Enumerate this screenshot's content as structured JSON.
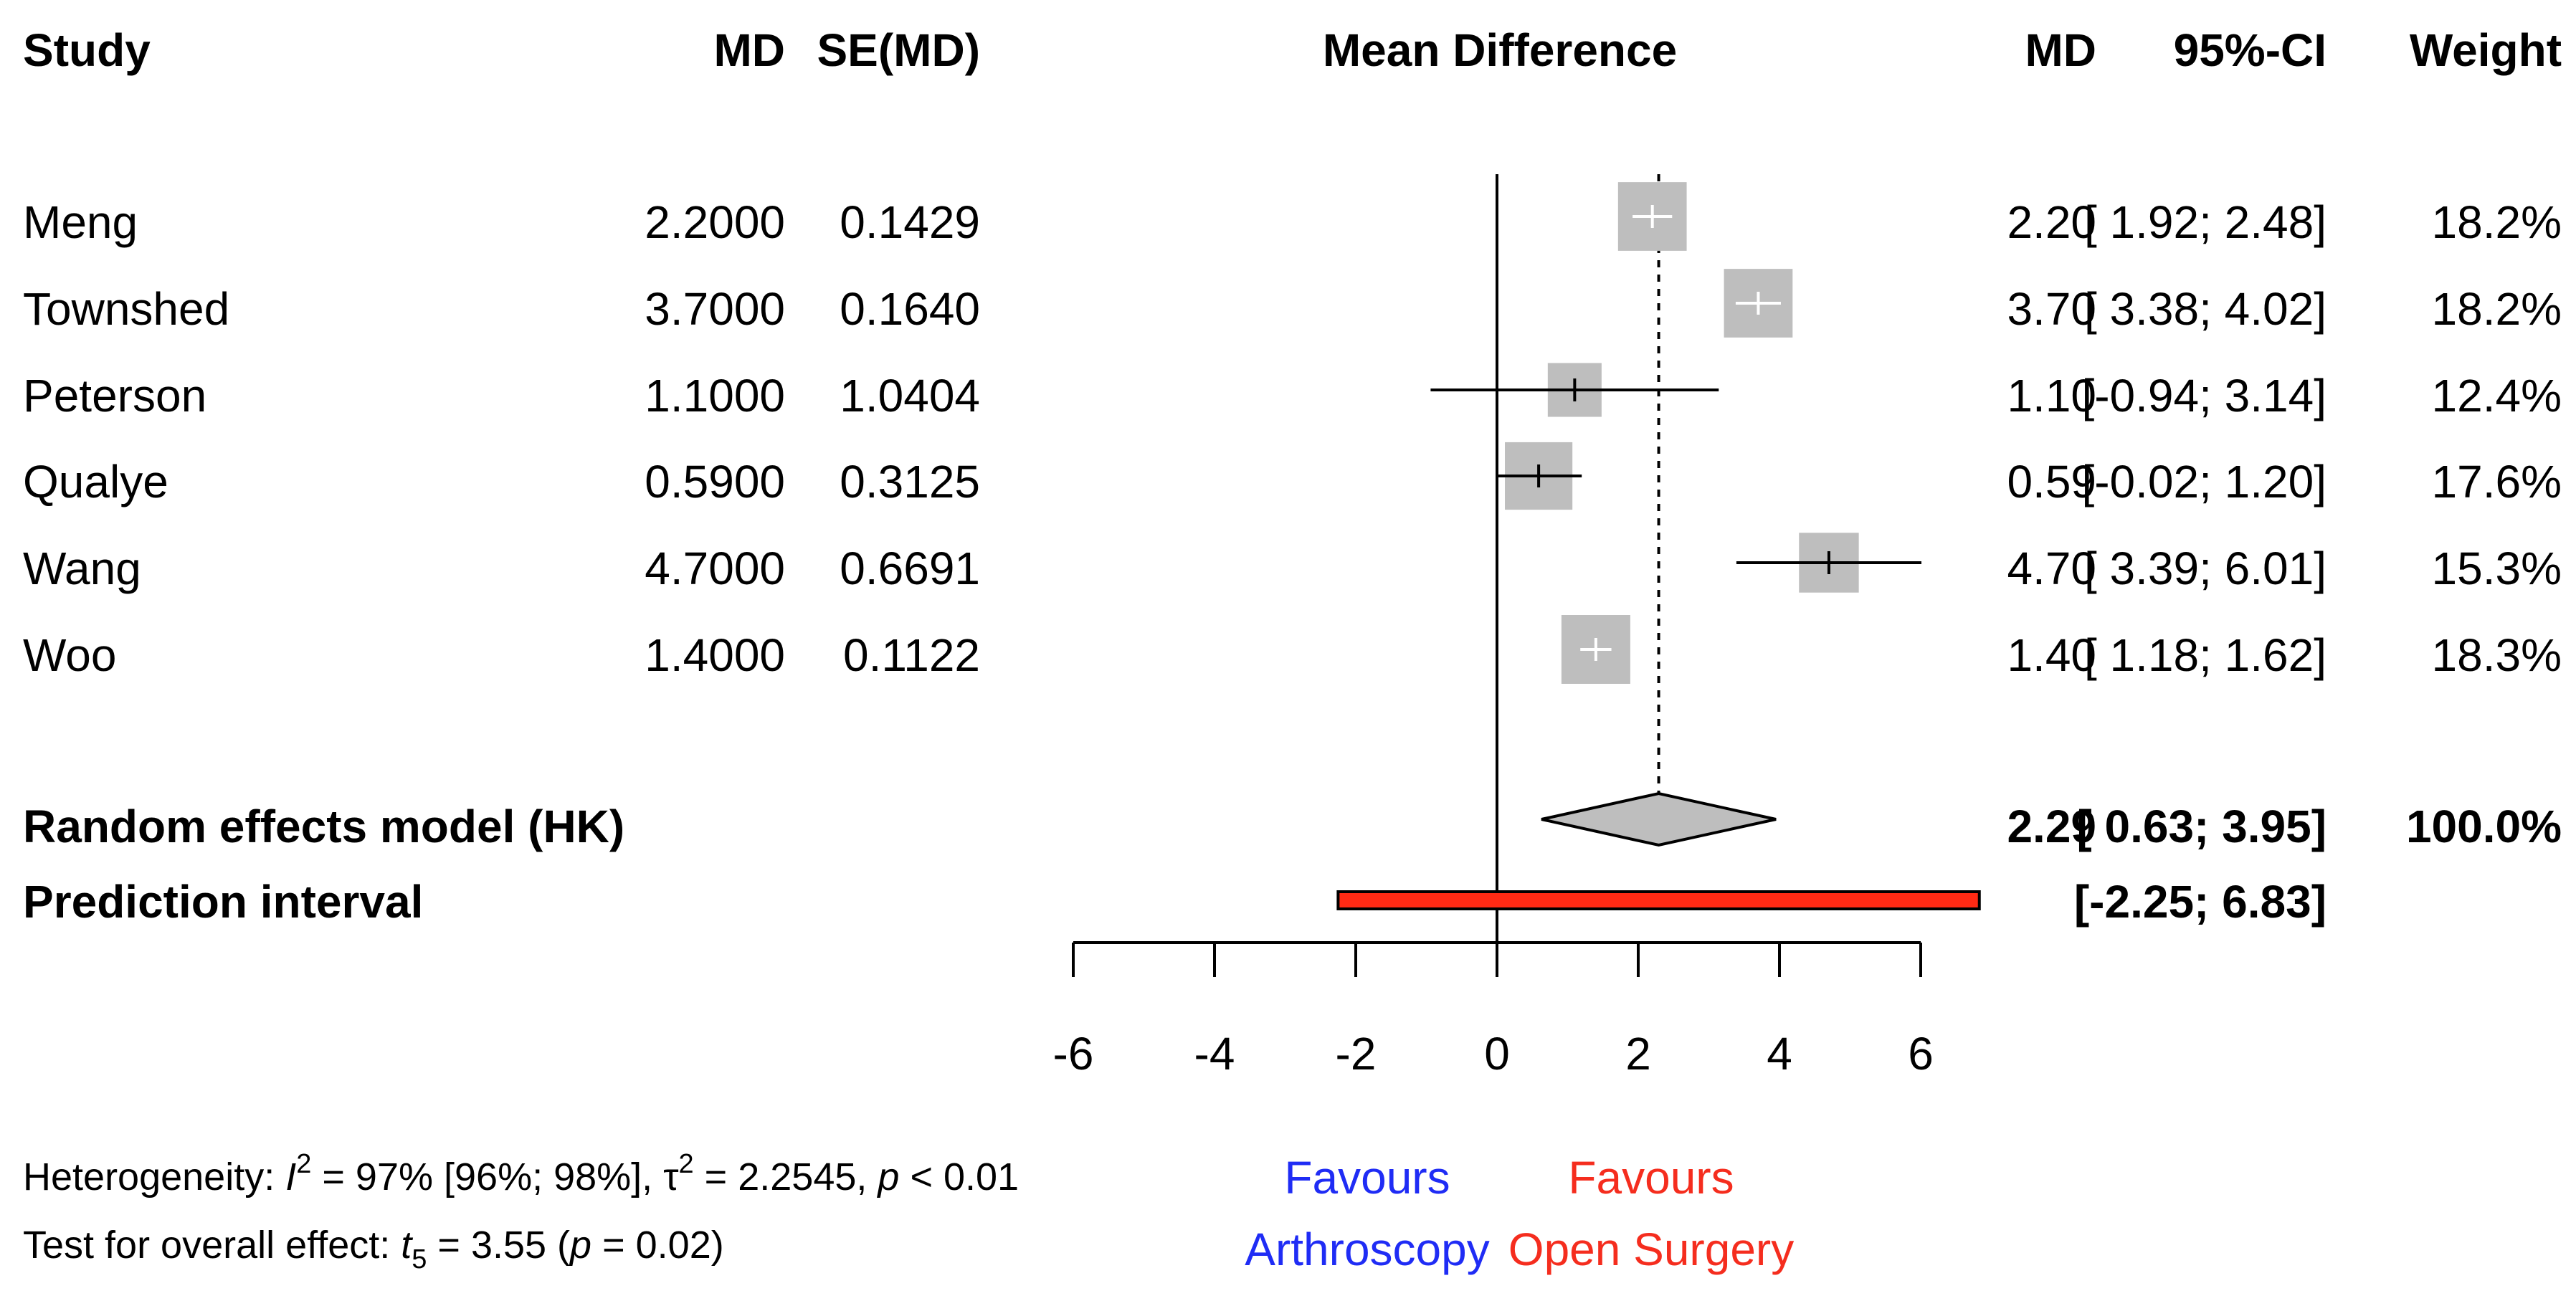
{
  "chart_data": {
    "type": "forest",
    "headers": {
      "study": "Study",
      "md": "MD",
      "se_md": "SE(MD)",
      "mean_difference": "Mean Difference",
      "md_right": "MD",
      "ci": "95%-CI",
      "weight": "Weight"
    },
    "studies": [
      {
        "name": "Meng",
        "md": "2.2000",
        "se": "0.1429",
        "md_fmt": "2.20",
        "ci_text": "[ 1.92; 2.48]",
        "weight_text": "18.2%",
        "md_value": 2.2,
        "ci_low": 1.92,
        "ci_high": 2.48,
        "weight": 18.2
      },
      {
        "name": "Townshed",
        "md": "3.7000",
        "se": "0.1640",
        "md_fmt": "3.70",
        "ci_text": "[ 3.38; 4.02]",
        "weight_text": "18.2%",
        "md_value": 3.7,
        "ci_low": 3.38,
        "ci_high": 4.02,
        "weight": 18.2
      },
      {
        "name": "Peterson",
        "md": "1.1000",
        "se": "1.0404",
        "md_fmt": "1.10",
        "ci_text": "[-0.94; 3.14]",
        "weight_text": "12.4%",
        "md_value": 1.1,
        "ci_low": -0.94,
        "ci_high": 3.14,
        "weight": 12.4
      },
      {
        "name": "Qualye",
        "md": "0.5900",
        "se": "0.3125",
        "md_fmt": "0.59",
        "ci_text": "[-0.02; 1.20]",
        "weight_text": "17.6%",
        "md_value": 0.59,
        "ci_low": -0.02,
        "ci_high": 1.2,
        "weight": 17.6
      },
      {
        "name": "Wang",
        "md": "4.7000",
        "se": "0.6691",
        "md_fmt": "4.70",
        "ci_text": "[ 3.39; 6.01]",
        "weight_text": "15.3%",
        "md_value": 4.7,
        "ci_low": 3.39,
        "ci_high": 6.01,
        "weight": 15.3
      },
      {
        "name": "Woo",
        "md": "1.4000",
        "se": "0.1122",
        "md_fmt": "1.40",
        "ci_text": "[ 1.18; 1.62]",
        "weight_text": "18.3%",
        "md_value": 1.4,
        "ci_low": 1.18,
        "ci_high": 1.62,
        "weight": 18.3
      }
    ],
    "pooled": {
      "label": "Random effects model (HK)",
      "md_fmt": "2.29",
      "ci_text": "[ 0.63; 3.95]",
      "weight_text": "100.0%",
      "md_value": 2.29,
      "ci_low": 0.63,
      "ci_high": 3.95
    },
    "prediction": {
      "label": "Prediction interval",
      "ci_text": "[-2.25; 6.83]",
      "low": -2.25,
      "high": 6.83
    },
    "x_axis": {
      "min": -6,
      "max": 6,
      "ticks": [
        -6,
        -4,
        -2,
        0,
        2,
        4,
        6
      ],
      "tick_labels": [
        "-6",
        "-4",
        "-2",
        "0",
        "2",
        "4",
        "6"
      ]
    },
    "favours_left": {
      "line1": "Favours",
      "line2": "Arthroscopy",
      "color": "#1f2cf5"
    },
    "favours_right": {
      "line1": "Favours",
      "line2": "Open Surgery",
      "color": "#f52d1e"
    },
    "heterogeneity": {
      "prefix": "Heterogeneity: ",
      "i2_symbol": "I",
      "i2_sup": "2",
      "i2_rest": " = 97% [96%; 98%], ",
      "tau_symbol": "τ",
      "tau_sup": "2",
      "tau_rest": " = 2.2545, ",
      "p_symbol": "p",
      "p_rest": " < 0.01"
    },
    "overall_test": {
      "prefix": "Test for overall effect: ",
      "t_symbol": "t",
      "t_sub": "5",
      "t_rest": " = 3.55 (",
      "p_symbol": "p",
      "p_rest": " = 0.02)"
    },
    "colors": {
      "square": "#bebebe",
      "diamond": "#bebebe",
      "prediction": "#ff2a14",
      "line": "#000000"
    }
  }
}
